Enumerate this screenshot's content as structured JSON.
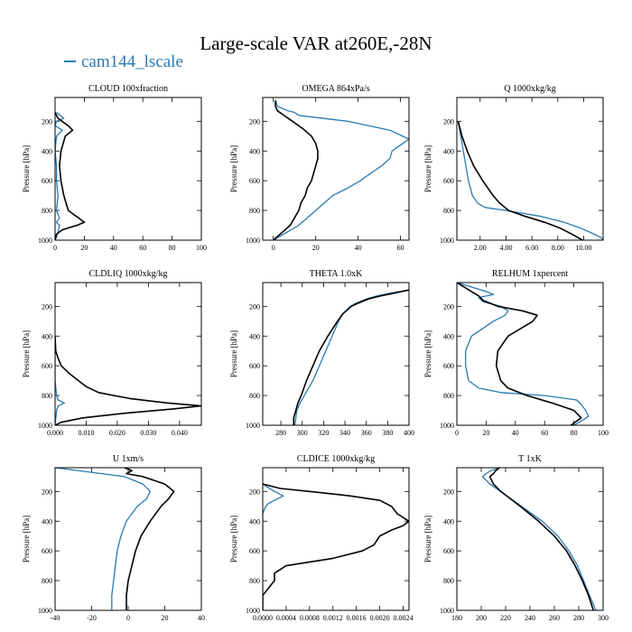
{
  "figure": {
    "title": "Large-scale VAR at260E,-28N",
    "legend_label": "cam144_lscale",
    "legend_color": "#2a7ab0",
    "second_line_color": "#000000"
  },
  "chart_data": [
    {
      "type": "line",
      "title": "CLOUD 100xfraction",
      "ylabel": "Pressure [hPa]",
      "xlim": [
        0,
        100
      ],
      "ylim": [
        1000,
        40
      ],
      "xticks": [
        0,
        20,
        40,
        60,
        80,
        100
      ],
      "xtick_labels": [
        "0",
        "20",
        "40",
        "60",
        "80",
        "100"
      ],
      "yticks": [
        200,
        400,
        600,
        800,
        1000
      ],
      "ytick_labels": [
        "200",
        "400",
        "600",
        "800",
        "1000"
      ],
      "series": [
        {
          "name": "cam144_lscale",
          "color": "#2a7ab0",
          "p": [
            140,
            180,
            200,
            230,
            260,
            300,
            400,
            500,
            600,
            700,
            800,
            850,
            880,
            900,
            950,
            1000
          ],
          "v": [
            1,
            6,
            1,
            0,
            5,
            1,
            0,
            1,
            1,
            2,
            1,
            3,
            1,
            3,
            2,
            0
          ]
        },
        {
          "color": "#000000",
          "p": [
            140,
            180,
            230,
            260,
            300,
            400,
            500,
            600,
            700,
            800,
            850,
            880,
            900,
            930,
            960,
            1000
          ],
          "v": [
            0,
            2,
            9,
            12,
            7,
            4,
            3,
            4,
            6,
            9,
            16,
            20,
            15,
            5,
            1,
            0
          ]
        }
      ]
    },
    {
      "type": "line",
      "title": "OMEGA 864xPa/s",
      "ylabel": "Pressure [hPa]",
      "xlim": [
        -5,
        64
      ],
      "ylim": [
        1000,
        40
      ],
      "xticks": [
        0,
        20,
        40,
        60
      ],
      "xtick_labels": [
        "0",
        "20",
        "40",
        "60"
      ],
      "yticks": [
        200,
        400,
        600,
        800,
        1000
      ],
      "ytick_labels": [
        "200",
        "400",
        "600",
        "800",
        "1000"
      ],
      "series": [
        {
          "name": "cam144_lscale",
          "color": "#2a7ab0",
          "p": [
            60,
            100,
            130,
            140,
            160,
            200,
            260,
            320,
            360,
            400,
            450,
            500,
            550,
            600,
            650,
            700,
            800,
            850,
            900,
            950,
            1000
          ],
          "v": [
            1,
            2,
            7,
            10,
            12,
            35,
            55,
            64,
            60,
            56,
            55,
            51,
            46,
            41,
            35,
            28,
            20,
            16,
            12,
            6,
            0
          ]
        },
        {
          "color": "#000000",
          "p": [
            60,
            100,
            130,
            160,
            200,
            250,
            300,
            350,
            400,
            450,
            500,
            550,
            600,
            650,
            700,
            750,
            800,
            850,
            900,
            950,
            1000
          ],
          "v": [
            1,
            1,
            2,
            5,
            9,
            14,
            18,
            20,
            21,
            21,
            20,
            19,
            18,
            16,
            15,
            13,
            12,
            10,
            8,
            4,
            0
          ]
        }
      ]
    },
    {
      "type": "line",
      "title": "Q 1000xkg/kg",
      "ylabel": "Pressure [hPa]",
      "xlim": [
        0.2,
        11.5
      ],
      "ylim": [
        1000,
        40
      ],
      "xticks": [
        2,
        4,
        6,
        8,
        10
      ],
      "xtick_labels": [
        "2.00",
        "4.00",
        "6.00",
        "8.00",
        "10.00"
      ],
      "yticks": [
        200,
        400,
        600,
        800,
        1000
      ],
      "ytick_labels": [
        "200",
        "400",
        "600",
        "800",
        "1000"
      ],
      "series": [
        {
          "name": "cam144_lscale",
          "color": "#2a7ab0",
          "p": [
            200,
            300,
            400,
            500,
            600,
            700,
            750,
            780,
            800,
            840,
            880,
            920,
            960,
            980,
            1000
          ],
          "v": [
            0.3,
            0.5,
            0.7,
            0.9,
            1.1,
            1.4,
            1.8,
            2.4,
            4.0,
            6.7,
            8.5,
            9.8,
            10.8,
            11.3,
            11.5
          ]
        },
        {
          "color": "#000000",
          "p": [
            200,
            300,
            400,
            500,
            600,
            700,
            750,
            800,
            840,
            880,
            920,
            960,
            1000
          ],
          "v": [
            0.3,
            0.6,
            1.0,
            1.5,
            2.2,
            3.0,
            3.5,
            4.2,
            5.5,
            7.0,
            8.2,
            9.1,
            9.9
          ]
        }
      ]
    },
    {
      "type": "line",
      "title": "CLDLIQ 1000xkg/kg",
      "ylabel": "Pressure [hPa]",
      "xlim": [
        0,
        0.047
      ],
      "ylim": [
        1000,
        40
      ],
      "xticks": [
        0,
        0.01,
        0.02,
        0.03,
        0.04
      ],
      "xtick_labels": [
        "0.000",
        "0.010",
        "0.020",
        "0.030",
        "0.040"
      ],
      "yticks": [
        200,
        400,
        600,
        800,
        1000
      ],
      "ytick_labels": [
        "200",
        "400",
        "600",
        "800",
        "1000"
      ],
      "series": [
        {
          "name": "cam144_lscale",
          "color": "#2a7ab0",
          "p": [
            400,
            700,
            800,
            830,
            850,
            870,
            900,
            1000
          ],
          "v": [
            0,
            0,
            0.0005,
            0.001,
            0.003,
            0.001,
            0.0005,
            0
          ]
        },
        {
          "color": "#000000",
          "p": [
            400,
            500,
            550,
            600,
            650,
            700,
            740,
            780,
            820,
            850,
            870,
            890,
            920,
            950,
            980,
            1000
          ],
          "v": [
            0,
            0.0002,
            0.001,
            0.002,
            0.0045,
            0.0075,
            0.01,
            0.014,
            0.024,
            0.036,
            0.047,
            0.038,
            0.022,
            0.009,
            0.002,
            0
          ]
        }
      ]
    },
    {
      "type": "line",
      "title": "THETA 1.0xK",
      "ylabel": "Pressure [hPa]",
      "xlim": [
        263,
        400
      ],
      "ylim": [
        1000,
        40
      ],
      "xticks": [
        280,
        300,
        320,
        340,
        360,
        380,
        400
      ],
      "xtick_labels": [
        "280",
        "300",
        "320",
        "340",
        "360",
        "380",
        "400"
      ],
      "yticks": [
        200,
        400,
        600,
        800,
        1000
      ],
      "ytick_labels": [
        "200",
        "400",
        "600",
        "800",
        "1000"
      ],
      "series": [
        {
          "name": "cam144_lscale",
          "color": "#2a7ab0",
          "p": [
            90,
            110,
            130,
            150,
            180,
            200,
            250,
            300,
            400,
            500,
            600,
            700,
            800,
            850,
            900,
            950,
            1000
          ],
          "v": [
            400,
            383,
            370,
            360,
            350,
            345,
            338,
            334,
            328,
            322,
            316,
            310,
            302,
            298,
            295,
            294,
            293
          ]
        },
        {
          "color": "#000000",
          "p": [
            90,
            110,
            130,
            150,
            180,
            200,
            250,
            300,
            400,
            500,
            600,
            700,
            800,
            850,
            900,
            950,
            1000
          ],
          "v": [
            400,
            387,
            373,
            362,
            352,
            346,
            338,
            333,
            324,
            316,
            310,
            304,
            299,
            296,
            294,
            292,
            292
          ]
        }
      ]
    },
    {
      "type": "line",
      "title": "RELHUM 1xpercent",
      "ylabel": "Pressure [hPa]",
      "xlim": [
        0,
        100
      ],
      "ylim": [
        1000,
        40
      ],
      "xticks": [
        0,
        20,
        40,
        60,
        80,
        100
      ],
      "xtick_labels": [
        "0",
        "20",
        "40",
        "60",
        "80",
        "100"
      ],
      "yticks": [
        200,
        400,
        600,
        800,
        1000
      ],
      "ytick_labels": [
        "200",
        "400",
        "600",
        "800",
        "1000"
      ],
      "series": [
        {
          "name": "cam144_lscale",
          "color": "#2a7ab0",
          "p": [
            40,
            70,
            100,
            120,
            140,
            170,
            200,
            230,
            260,
            300,
            400,
            500,
            600,
            700,
            750,
            780,
            800,
            830,
            860,
            900,
            940,
            960,
            1000
          ],
          "v": [
            0,
            10,
            20,
            25,
            15,
            18,
            30,
            35,
            33,
            25,
            10,
            6,
            6,
            8,
            15,
            30,
            60,
            82,
            85,
            88,
            90,
            87,
            80
          ]
        },
        {
          "color": "#000000",
          "p": [
            40,
            70,
            100,
            130,
            160,
            200,
            230,
            260,
            300,
            400,
            500,
            600,
            700,
            750,
            800,
            850,
            900,
            950,
            1000
          ],
          "v": [
            0,
            5,
            10,
            15,
            18,
            28,
            45,
            55,
            52,
            35,
            28,
            27,
            30,
            35,
            48,
            65,
            80,
            85,
            78
          ]
        }
      ]
    },
    {
      "type": "line",
      "title": "U 1xm/s",
      "ylabel": "Pressure [hPa]",
      "xlim": [
        -40,
        40
      ],
      "ylim": [
        1000,
        40
      ],
      "xticks": [
        -40,
        -20,
        0,
        20,
        40
      ],
      "xtick_labels": [
        "-40",
        "-20",
        "0",
        "20",
        "40"
      ],
      "yticks": [
        200,
        400,
        600,
        800,
        1000
      ],
      "ytick_labels": [
        "200",
        "400",
        "600",
        "800",
        "1000"
      ],
      "series": [
        {
          "name": "cam144_lscale",
          "color": "#2a7ab0",
          "p": [
            40,
            100,
            150,
            200,
            250,
            300,
            400,
            500,
            600,
            700,
            800,
            900,
            1000
          ],
          "v": [
            -40,
            -2,
            8,
            12,
            10,
            5,
            -1,
            -4,
            -6,
            -7,
            -8,
            -9,
            -9
          ]
        },
        {
          "color": "#000000",
          "p": [
            40,
            60,
            80,
            100,
            150,
            200,
            250,
            300,
            400,
            500,
            600,
            700,
            800,
            900,
            1000
          ],
          "v": [
            -2,
            2,
            -1,
            8,
            20,
            25,
            22,
            18,
            12,
            7,
            4,
            2,
            0,
            -1,
            -1
          ]
        }
      ]
    },
    {
      "type": "line",
      "title": "CLDICE 1000xkg/kg",
      "ylabel": "Pressure [hPa]",
      "xlim": [
        0,
        0.0025
      ],
      "ylim": [
        1000,
        40
      ],
      "xticks": [
        0,
        0.0004,
        0.0008,
        0.0012,
        0.0016,
        0.002,
        0.0024
      ],
      "xtick_labels": [
        "0.0000",
        "0.0004",
        "0.0008",
        "0.0012",
        "0.0016",
        "0.0020",
        "0.0024"
      ],
      "yticks": [
        200,
        400,
        600,
        800,
        1000
      ],
      "ytick_labels": [
        "200",
        "400",
        "600",
        "800",
        "1000"
      ],
      "series": [
        {
          "name": "cam144_lscale",
          "color": "#2a7ab0",
          "p": [
            150,
            200,
            230,
            250,
            280,
            300,
            350,
            1000
          ],
          "v": [
            0,
            0.0002,
            0.00035,
            0.00025,
            0.0001,
            5e-05,
            0,
            0
          ]
        },
        {
          "color": "#000000",
          "p": [
            150,
            180,
            200,
            230,
            260,
            300,
            350,
            400,
            430,
            460,
            500,
            560,
            600,
            650,
            700,
            750,
            800,
            850,
            900,
            1000
          ],
          "v": [
            0,
            0.0003,
            0.0008,
            0.0015,
            0.002,
            0.0022,
            0.0023,
            0.0025,
            0.0024,
            0.0022,
            0.002,
            0.0019,
            0.0017,
            0.0012,
            0.0004,
            0.0002,
            0.0002,
            0.0001,
            0,
            0
          ]
        }
      ]
    },
    {
      "type": "line",
      "title": "T 1xK",
      "ylabel": "Pressure [hPa]",
      "xlim": [
        180,
        300
      ],
      "ylim": [
        1000,
        40
      ],
      "xticks": [
        180,
        200,
        220,
        240,
        260,
        280,
        300
      ],
      "xtick_labels": [
        "180",
        "200",
        "220",
        "240",
        "260",
        "280",
        "300"
      ],
      "yticks": [
        200,
        400,
        600,
        800,
        1000
      ],
      "ytick_labels": [
        "200",
        "400",
        "600",
        "800",
        "1000"
      ],
      "series": [
        {
          "name": "cam144_lscale",
          "color": "#2a7ab0",
          "p": [
            40,
            60,
            80,
            100,
            150,
            200,
            300,
            400,
            500,
            600,
            700,
            800,
            900,
            1000
          ],
          "v": [
            215,
            208,
            204,
            201,
            207,
            216,
            233,
            250,
            263,
            272,
            279,
            284,
            289,
            294
          ]
        },
        {
          "color": "#000000",
          "p": [
            40,
            60,
            80,
            100,
            150,
            200,
            300,
            400,
            500,
            600,
            700,
            800,
            900,
            1000
          ],
          "v": [
            215,
            212,
            210,
            207,
            210,
            216,
            232,
            247,
            260,
            270,
            277,
            283,
            288,
            292
          ]
        }
      ]
    }
  ]
}
